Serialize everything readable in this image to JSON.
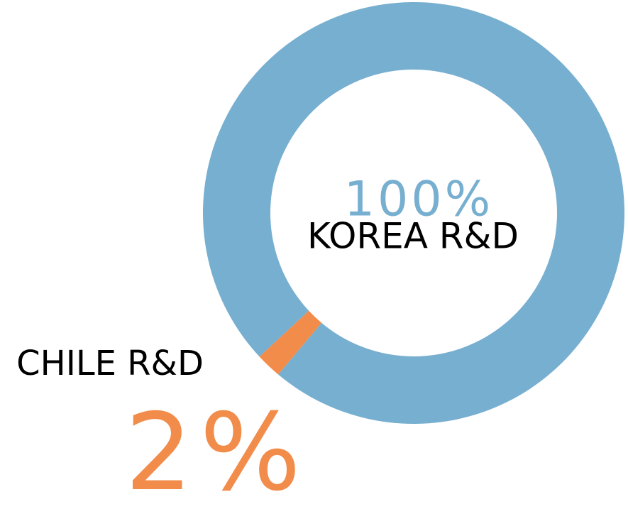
{
  "chart_data": {
    "type": "pie",
    "donut": true,
    "categories": [
      "KOREA R&D",
      "CHILE R&D"
    ],
    "values": [
      100,
      2
    ],
    "value_labels": [
      "100%",
      "2%"
    ],
    "colors": [
      "#77afd0",
      "#f28c4b"
    ]
  }
}
